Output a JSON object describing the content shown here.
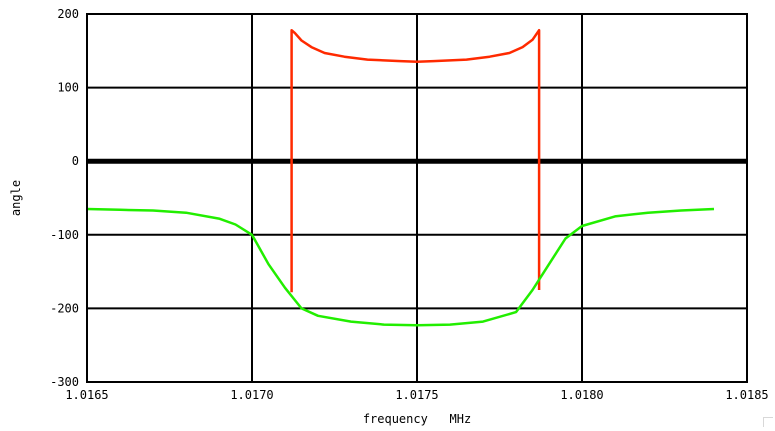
{
  "chart_data": {
    "type": "line",
    "title": "",
    "xlabel": "frequency   MHz",
    "ylabel": "angle",
    "xlim": [
      1.0165,
      1.0185
    ],
    "ylim": [
      -300,
      200
    ],
    "x_ticks": [
      1.0165,
      1.017,
      1.0175,
      1.018,
      1.0185
    ],
    "x_tick_labels": [
      "1.0165",
      "1.0170",
      "1.0175",
      "1.0180",
      "1.0185"
    ],
    "y_ticks": [
      -300,
      -200,
      -100,
      0,
      100,
      200
    ],
    "y_tick_labels": [
      "-300",
      "-200",
      "-100",
      "0",
      "100",
      "200"
    ],
    "grid": true,
    "emphasized_line": 0,
    "series": [
      {
        "color": "#ff2a00",
        "x": [
          1.01712,
          1.01712,
          1.01713,
          1.01715,
          1.01718,
          1.01722,
          1.01728,
          1.01735,
          1.01745,
          1.0175,
          1.01755,
          1.01765,
          1.01772,
          1.01778,
          1.01782,
          1.01785,
          1.01787,
          1.01787,
          1.01787
        ],
        "y": [
          -178,
          178,
          174,
          164,
          155,
          147,
          142,
          138,
          136,
          135,
          136,
          138,
          142,
          147,
          155,
          165,
          178,
          -100,
          -175
        ]
      },
      {
        "color": "#22ee00",
        "x": [
          1.0165,
          1.0166,
          1.0167,
          1.0168,
          1.0169,
          1.01695,
          1.017,
          1.01705,
          1.0171,
          1.01715,
          1.0172,
          1.0173,
          1.0174,
          1.0175,
          1.0176,
          1.0177,
          1.0178,
          1.01785,
          1.0179,
          1.01795,
          1.018,
          1.0181,
          1.0182,
          1.0183,
          1.0184
        ],
        "y": [
          -65,
          -66,
          -67,
          -70,
          -78,
          -86,
          -100,
          -140,
          -172,
          -200,
          -210,
          -218,
          -222,
          -223,
          -222,
          -218,
          -205,
          -175,
          -140,
          -105,
          -88,
          -75,
          -70,
          -67,
          -65
        ]
      }
    ]
  }
}
